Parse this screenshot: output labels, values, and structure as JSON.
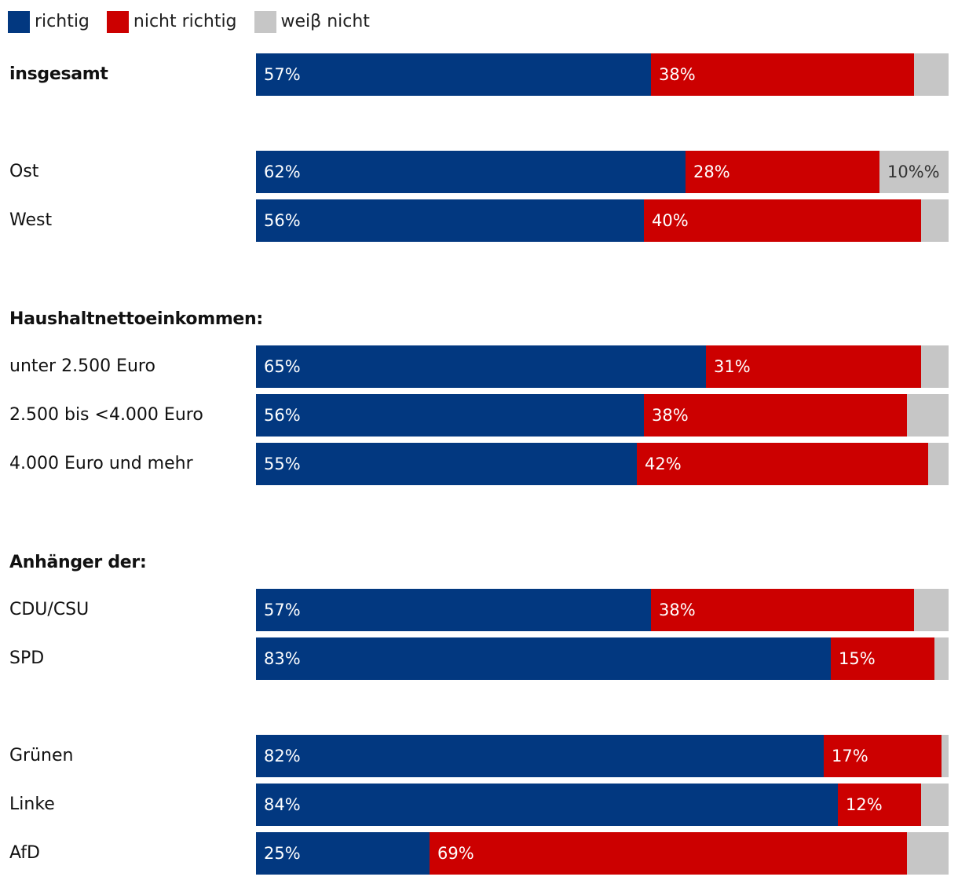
{
  "chart_data": {
    "type": "bar",
    "orientation": "horizontal",
    "stacked": true,
    "title": "",
    "xlim": [
      0,
      100
    ],
    "colors": {
      "richtig": "#023880",
      "nicht_richtig": "#cc0000",
      "weiss_nicht": "#c6c6c6"
    },
    "legend": [
      {
        "key": "richtig",
        "label": "richtig"
      },
      {
        "key": "nicht_richtig",
        "label": "nicht richtig"
      },
      {
        "key": "weiss_nicht",
        "label": "weiβ nicht"
      }
    ],
    "section_headings": [
      {
        "key": "einkommen",
        "text": "Haushaltnettoeinkommen:"
      },
      {
        "key": "anhaenger",
        "text": "Anhänger der:"
      }
    ],
    "rows": [
      {
        "label": "insgesamt",
        "bold": true,
        "values": [
          57,
          38,
          5
        ],
        "value_labels": [
          "57%",
          "38%",
          ""
        ]
      },
      {
        "label": "Ost",
        "bold": false,
        "values": [
          62,
          28,
          10
        ],
        "value_labels": [
          "62%",
          "28%",
          "10%%"
        ]
      },
      {
        "label": "West",
        "bold": false,
        "values": [
          56,
          40,
          4
        ],
        "value_labels": [
          "56%",
          "40%",
          ""
        ]
      },
      {
        "label": "unter 2.500 Euro",
        "bold": false,
        "values": [
          65,
          31,
          4
        ],
        "value_labels": [
          "65%",
          "31%",
          ""
        ]
      },
      {
        "label": "2.500 bis <4.000 Euro",
        "bold": false,
        "values": [
          56,
          38,
          6
        ],
        "value_labels": [
          "56%",
          "38%",
          ""
        ]
      },
      {
        "label": "4.000 Euro und mehr",
        "bold": false,
        "values": [
          55,
          42,
          3
        ],
        "value_labels": [
          "55%",
          "42%",
          ""
        ]
      },
      {
        "label": "CDU/CSU",
        "bold": false,
        "values": [
          57,
          38,
          5
        ],
        "value_labels": [
          "57%",
          "38%",
          ""
        ]
      },
      {
        "label": "SPD",
        "bold": false,
        "values": [
          83,
          15,
          2
        ],
        "value_labels": [
          "83%",
          "15%",
          ""
        ]
      },
      {
        "label": "Grünen",
        "bold": false,
        "values": [
          82,
          17,
          1
        ],
        "value_labels": [
          "82%",
          "17%",
          ""
        ]
      },
      {
        "label": "Linke",
        "bold": false,
        "values": [
          84,
          12,
          4
        ],
        "value_labels": [
          "84%",
          "12%",
          ""
        ]
      },
      {
        "label": "AfD",
        "bold": false,
        "values": [
          25,
          69,
          6
        ],
        "value_labels": [
          "25%",
          "69%",
          ""
        ]
      }
    ]
  }
}
